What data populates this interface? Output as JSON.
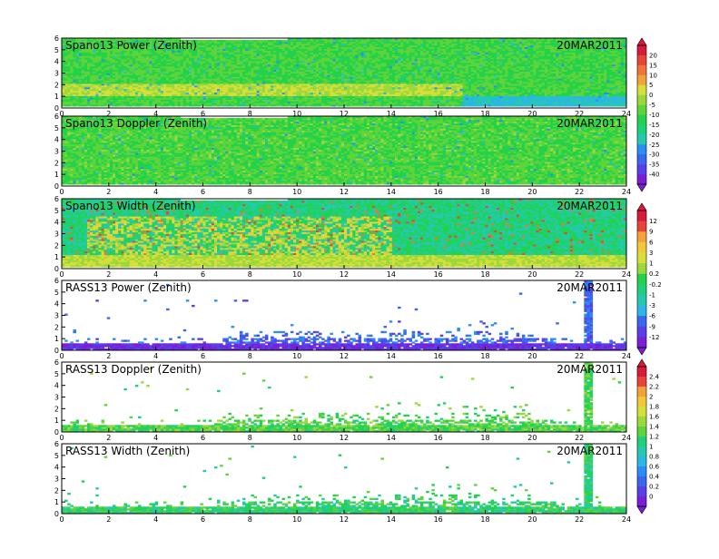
{
  "colors": {
    "power_scale": [
      "#7a1fd6",
      "#5a3fe8",
      "#3a66f0",
      "#2b8ef5",
      "#2bb6e6",
      "#25c9b0",
      "#1fd07a",
      "#22d24a",
      "#5ed43a",
      "#9ad83c",
      "#d6de3a",
      "#f0c83a",
      "#f3a23a",
      "#f0743a",
      "#e8443a",
      "#d81b3a"
    ],
    "rass_power_scale": [
      "#7a1fd6",
      "#5a3fe8",
      "#3a66f0",
      "#2b8ef5",
      "#2bb6e6",
      "#25c9b0",
      "#1fd07a",
      "#22d24a",
      "#5ed43a",
      "#9ad83c",
      "#d6de3a",
      "#f0c83a",
      "#f3a23a",
      "#e8443a",
      "#d81b3a"
    ],
    "rass_doppler_scale": [
      "#7a1fd6",
      "#5a3fe8",
      "#3a66f0",
      "#2b8ef5",
      "#2bb6e6",
      "#25c9b0",
      "#1fd07a",
      "#22d24a",
      "#5ed43a",
      "#9ad83c",
      "#d6de3a",
      "#f0c83a",
      "#f3a23a",
      "#e8443a",
      "#d81b3a"
    ]
  },
  "legends": [
    {
      "labels": [
        "20",
        "15",
        "10",
        "5",
        "0",
        "-5",
        "-10",
        "-15",
        "-20",
        "-25",
        "-30",
        "-35",
        "-40"
      ]
    },
    {
      "labels": [
        "12",
        "9",
        "6",
        "3",
        "1",
        "0.2",
        "-0.2",
        "-1",
        "-3",
        "-6",
        "-9",
        "-12"
      ]
    },
    {
      "labels": [
        "2.4",
        "2.2",
        "2",
        "1.8",
        "1.6",
        "1.4",
        "1.2",
        "1",
        "0.8",
        "0.6",
        "0.4",
        "0.2",
        "0"
      ]
    }
  ],
  "chart_data": [
    {
      "type": "heatmap",
      "title": "Spano13 Power (Zenith)",
      "date": "20MAR2011",
      "x_ticks": [
        "0",
        "2",
        "4",
        "6",
        "8",
        "10",
        "12",
        "14",
        "16",
        "18",
        "20",
        "22",
        "24"
      ],
      "y_ticks": [
        "0",
        "1",
        "2",
        "3",
        "4",
        "5",
        "6"
      ],
      "xlim": [
        0,
        24
      ],
      "ylim": [
        0,
        6
      ],
      "style": "dense",
      "palette": "power_scale"
    },
    {
      "type": "heatmap",
      "title": "Spano13 Doppler (Zenith)",
      "date": "20MAR2011",
      "x_ticks": [
        "0",
        "2",
        "4",
        "6",
        "8",
        "10",
        "12",
        "14",
        "16",
        "18",
        "20",
        "22",
        "24"
      ],
      "y_ticks": [
        "0",
        "1",
        "2",
        "3",
        "4",
        "5",
        "6"
      ],
      "xlim": [
        0,
        24
      ],
      "ylim": [
        0,
        6
      ],
      "style": "dense",
      "palette": "power_scale"
    },
    {
      "type": "heatmap",
      "title": "Spano13 Width (Zenith)",
      "date": "20MAR2011",
      "x_ticks": [
        "0",
        "2",
        "4",
        "6",
        "8",
        "10",
        "12",
        "14",
        "16",
        "18",
        "20",
        "22",
        "24"
      ],
      "y_ticks": [
        "0",
        "1",
        "2",
        "3",
        "4",
        "5",
        "6"
      ],
      "xlim": [
        0,
        24
      ],
      "ylim": [
        0,
        6
      ],
      "style": "dense",
      "palette": "power_scale"
    },
    {
      "type": "heatmap",
      "title": "RASS13 Power (Zenith)",
      "date": "20MAR2011",
      "x_ticks": [
        "0",
        "2",
        "4",
        "6",
        "8",
        "10",
        "12",
        "14",
        "16",
        "18",
        "20",
        "22",
        "24"
      ],
      "y_ticks": [
        "0",
        "1",
        "2",
        "3",
        "4",
        "5",
        "6"
      ],
      "xlim": [
        0,
        24
      ],
      "ylim": [
        0,
        6
      ],
      "style": "sparse",
      "palette": "rass_power_scale"
    },
    {
      "type": "heatmap",
      "title": "RASS13 Doppler (Zenith)",
      "date": "20MAR2011",
      "x_ticks": [
        "0",
        "2",
        "4",
        "6",
        "8",
        "10",
        "12",
        "14",
        "16",
        "18",
        "20",
        "22",
        "24"
      ],
      "y_ticks": [
        "0",
        "1",
        "2",
        "3",
        "4",
        "5",
        "6"
      ],
      "xlim": [
        0,
        24
      ],
      "ylim": [
        0,
        6
      ],
      "style": "sparse",
      "palette": "rass_doppler_scale"
    },
    {
      "type": "heatmap",
      "title": "RASS13 Width (Zenith)",
      "date": "20MAR2011",
      "x_ticks": [
        "0",
        "2",
        "4",
        "6",
        "8",
        "10",
        "12",
        "14",
        "16",
        "18",
        "20",
        "22",
        "24"
      ],
      "y_ticks": [
        "0",
        "1",
        "2",
        "3",
        "4",
        "5",
        "6"
      ],
      "xlim": [
        0,
        24
      ],
      "ylim": [
        0,
        6
      ],
      "style": "sparse",
      "palette": "rass_doppler_scale"
    }
  ]
}
